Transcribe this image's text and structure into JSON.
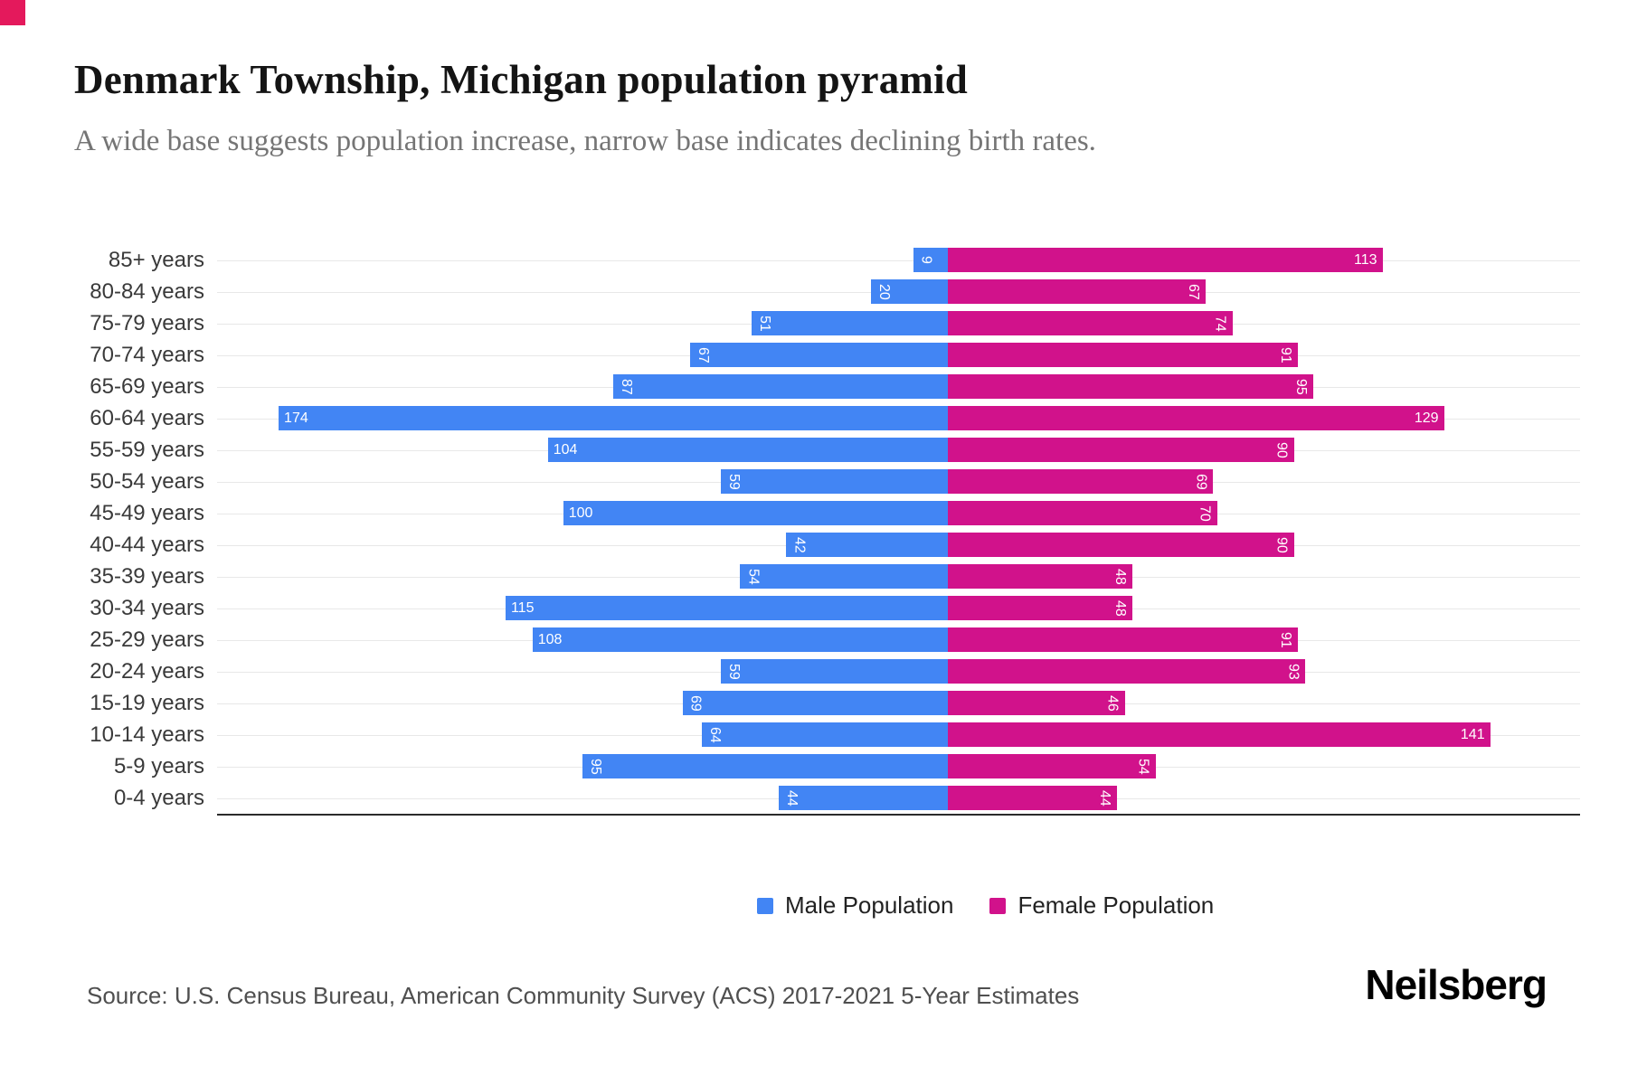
{
  "header": {
    "title": "Denmark Township, Michigan population pyramid",
    "subtitle": "A wide base suggests population increase, narrow base indicates declining birth rates."
  },
  "legend": [
    {
      "label": "Male Population"
    },
    {
      "label": "Female Population"
    }
  ],
  "footer": {
    "source": "Source: U.S. Census Bureau, American Community Survey (ACS) 2017-2021 5-Year Estimates",
    "brand": "Neilsberg"
  },
  "colors": {
    "accent": "#E4195C",
    "male": "#4285F4",
    "female": "#D1128B"
  },
  "chart_data": {
    "type": "bar",
    "subtype": "population-pyramid",
    "orientation": "horizontal",
    "title": "Denmark Township, Michigan population pyramid",
    "xlabel": "",
    "ylabel": "",
    "categories": [
      "85+ years",
      "80-84 years",
      "75-79 years",
      "70-74 years",
      "65-69 years",
      "60-64 years",
      "55-59 years",
      "50-54 years",
      "45-49 years",
      "40-44 years",
      "35-39 years",
      "30-34 years",
      "25-29 years",
      "20-24 years",
      "15-19 years",
      "10-14 years",
      "5-9 years",
      "0-4 years"
    ],
    "series": [
      {
        "name": "Male Population",
        "color": "#4285F4",
        "side": "left",
        "values": [
          9,
          20,
          51,
          67,
          87,
          174,
          104,
          59,
          100,
          42,
          54,
          115,
          108,
          59,
          69,
          64,
          95,
          44
        ]
      },
      {
        "name": "Female Population",
        "color": "#D1128B",
        "side": "right",
        "values": [
          113,
          67,
          74,
          91,
          95,
          129,
          90,
          69,
          70,
          90,
          48,
          48,
          91,
          93,
          46,
          141,
          54,
          44
        ]
      }
    ],
    "xlim_each_side": [
      0,
      190
    ],
    "grid": true,
    "legend_position": "bottom",
    "value_labels": "inside-end, rotated 90deg when value < 100"
  }
}
